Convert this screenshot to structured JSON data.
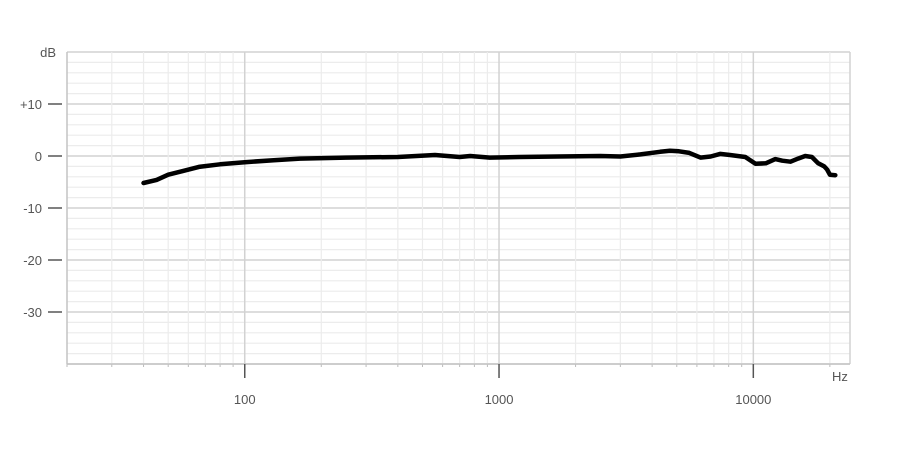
{
  "chart_data": {
    "type": "line",
    "title": "",
    "xlabel": "Hz",
    "ylabel": "dB",
    "x_scale": "log",
    "xlim": [
      20,
      24000
    ],
    "ylim": [
      -40,
      20
    ],
    "grid": true,
    "x_ticks": [
      {
        "value": 100,
        "label": "100"
      },
      {
        "value": 1000,
        "label": "1000"
      },
      {
        "value": 10000,
        "label": "10000"
      }
    ],
    "y_ticks": [
      {
        "value": 20,
        "label": "dB"
      },
      {
        "value": 10,
        "label": "+10"
      },
      {
        "value": 0,
        "label": "0"
      },
      {
        "value": -10,
        "label": "-10"
      },
      {
        "value": -20,
        "label": "-20"
      },
      {
        "value": -30,
        "label": "-30"
      }
    ],
    "series": [
      {
        "color": "#000000",
        "x": [
          40,
          45,
          50,
          57,
          66,
          80,
          100,
          130,
          165,
          250,
          400,
          560,
          700,
          770,
          920,
          1200,
          1700,
          2500,
          3000,
          3600,
          4300,
          4700,
          5100,
          5600,
          6200,
          6800,
          7400,
          8100,
          9300,
          10200,
          11200,
          12200,
          13000,
          14000,
          15000,
          16000,
          17000,
          18000,
          19000,
          19500,
          20000,
          21000
        ],
        "y": [
          -5.2,
          -4.6,
          -3.6,
          -2.9,
          -2.1,
          -1.6,
          -1.2,
          -0.8,
          -0.5,
          -0.3,
          -0.2,
          0.2,
          -0.2,
          0,
          -0.3,
          -0.2,
          -0.1,
          0,
          -0.1,
          0.3,
          0.8,
          1.0,
          0.9,
          0.6,
          -0.3,
          -0.1,
          0.4,
          0.2,
          -0.2,
          -1.5,
          -1.4,
          -0.6,
          -0.9,
          -1.1,
          -0.5,
          0,
          -0.2,
          -1.4,
          -2.0,
          -2.6,
          -3.6,
          -3.7
        ]
      }
    ]
  }
}
